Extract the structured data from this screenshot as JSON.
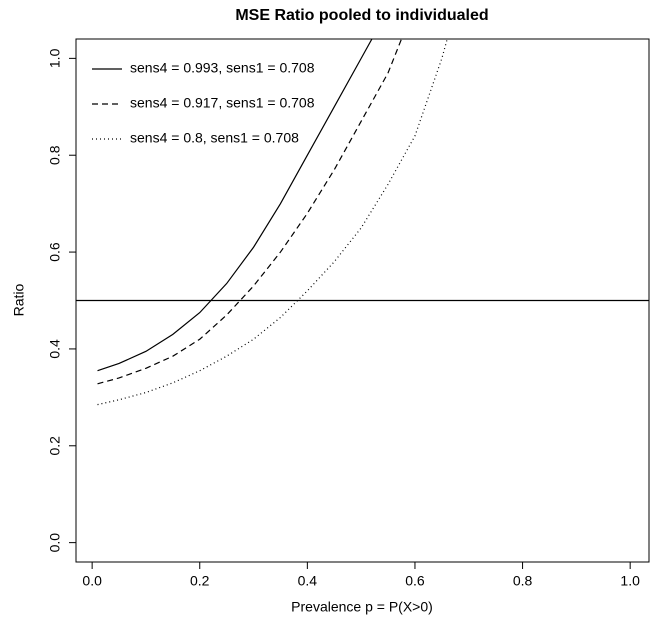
{
  "chart_data": {
    "type": "line",
    "title": "MSE Ratio pooled to individualed",
    "x_label": "Prevalence p = P(X>0)",
    "y_label": "Ratio",
    "xlim": [
      -0.03,
      1.035
    ],
    "ylim": [
      -0.04,
      1.04
    ],
    "xticks": [
      {
        "value": 0,
        "label": "0.0"
      },
      0.2,
      0.4,
      0.6,
      0.8,
      {
        "value": 1,
        "label": "1.0"
      }
    ],
    "yticks": [
      {
        "value": 0,
        "label": "0.0"
      },
      0.2,
      0.4,
      0.6,
      0.8,
      {
        "value": 1,
        "label": "1.0"
      }
    ],
    "hline": 0.5,
    "legend": "top-left",
    "series": [
      {
        "name": "sens4 = 0.993, sens1 = 0.708",
        "color": "#000000",
        "dash": "solid",
        "x": [
          0.01,
          0.05,
          0.1,
          0.15,
          0.2,
          0.25,
          0.3,
          0.35,
          0.4,
          0.45,
          0.5,
          0.52
        ],
        "values": [
          0.355,
          0.37,
          0.395,
          0.43,
          0.475,
          0.535,
          0.61,
          0.7,
          0.8,
          0.9,
          1.0,
          1.04
        ]
      },
      {
        "name": "sens4 = 0.917, sens1 = 0.708",
        "color": "#000000",
        "dash": "dashed",
        "x": [
          0.01,
          0.05,
          0.1,
          0.15,
          0.2,
          0.25,
          0.3,
          0.35,
          0.4,
          0.45,
          0.5,
          0.55,
          0.575
        ],
        "values": [
          0.328,
          0.34,
          0.36,
          0.385,
          0.42,
          0.47,
          0.53,
          0.6,
          0.68,
          0.77,
          0.87,
          0.97,
          1.04
        ]
      },
      {
        "name": "sens4 = 0.8, sens1 = 0.708",
        "color": "#000000",
        "dash": "dotted",
        "x": [
          0.01,
          0.05,
          0.1,
          0.15,
          0.2,
          0.25,
          0.3,
          0.35,
          0.4,
          0.45,
          0.5,
          0.55,
          0.6,
          0.65,
          0.66
        ],
        "values": [
          0.285,
          0.295,
          0.31,
          0.33,
          0.355,
          0.385,
          0.42,
          0.465,
          0.52,
          0.58,
          0.65,
          0.74,
          0.84,
          1.0,
          1.04
        ]
      }
    ]
  }
}
